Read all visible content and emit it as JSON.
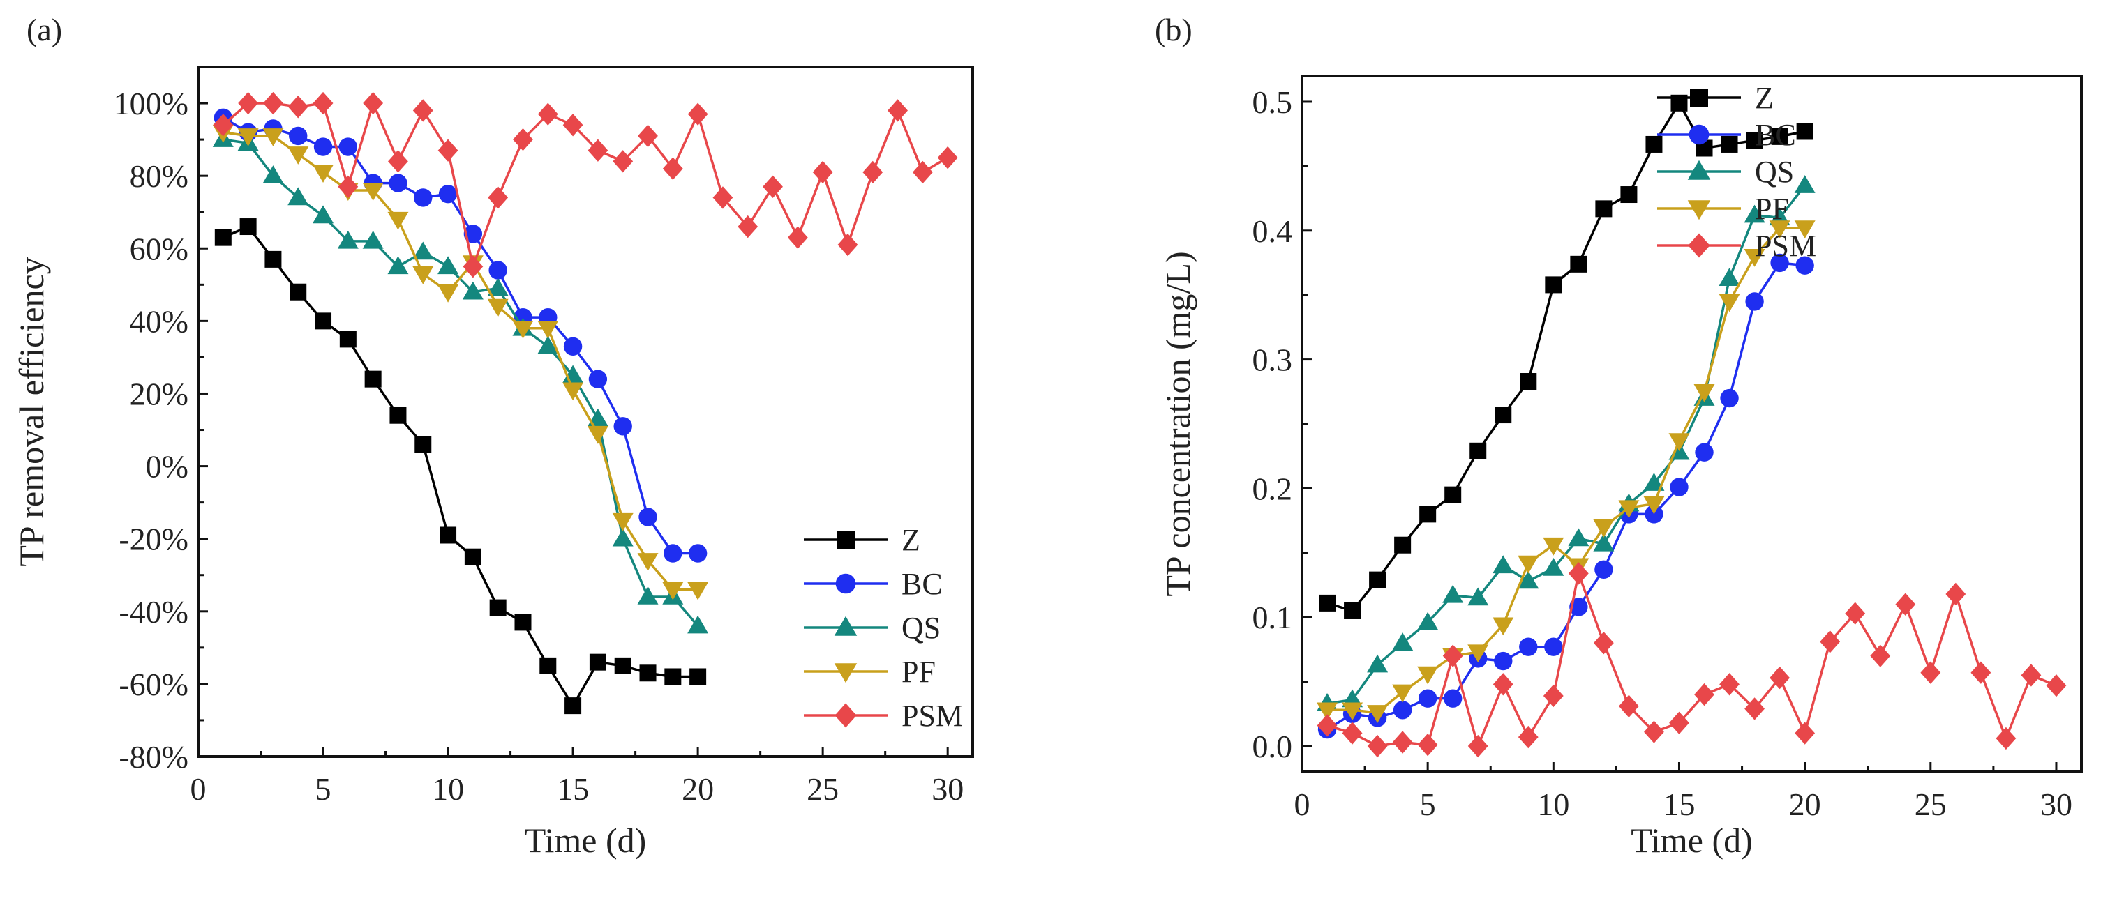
{
  "chart_data": [
    {
      "type": "line",
      "panel_label": "(a)",
      "xlabel": "Time (d)",
      "ylabel": "TP removal efficiency",
      "xlim": [
        0,
        31
      ],
      "ylim": [
        -80,
        110
      ],
      "xticks": [
        0,
        5,
        10,
        15,
        20,
        25,
        30
      ],
      "yticks": [
        -80,
        -60,
        -40,
        -20,
        0,
        20,
        40,
        60,
        80,
        100
      ],
      "ytick_suffix": "%",
      "legend_position": "bottom-right",
      "series": [
        {
          "name": "Z",
          "color": "#000000",
          "marker": "square",
          "x": [
            1,
            2,
            3,
            4,
            5,
            6,
            7,
            8,
            9,
            10,
            11,
            12,
            13,
            14,
            15,
            16,
            17,
            18,
            19,
            20
          ],
          "y": [
            63,
            66,
            57,
            48,
            40,
            35,
            24,
            14,
            6,
            -19,
            -25,
            -39,
            -43,
            -55,
            -66,
            -54,
            -55,
            -57,
            -58,
            -58
          ]
        },
        {
          "name": "BC",
          "color": "#1f2ef0",
          "marker": "circle",
          "x": [
            1,
            2,
            3,
            4,
            5,
            6,
            7,
            8,
            9,
            10,
            11,
            12,
            13,
            14,
            15,
            16,
            17,
            18,
            19,
            20
          ],
          "y": [
            96,
            92,
            93,
            91,
            88,
            88,
            78,
            78,
            74,
            75,
            64,
            54,
            41,
            41,
            33,
            24,
            11,
            -14,
            -24,
            -24
          ]
        },
        {
          "name": "QS",
          "color": "#14877e",
          "marker": "triangle-up",
          "x": [
            1,
            2,
            3,
            4,
            5,
            6,
            7,
            8,
            9,
            10,
            11,
            12,
            13,
            14,
            15,
            16,
            17,
            18,
            19,
            20
          ],
          "y": [
            90,
            89,
            80,
            74,
            69,
            62,
            62,
            55,
            59,
            55,
            48,
            49,
            38,
            33,
            25,
            13,
            -20,
            -36,
            -36,
            -44
          ]
        },
        {
          "name": "PF",
          "color": "#c9a01c",
          "marker": "triangle-down",
          "x": [
            1,
            2,
            3,
            4,
            5,
            6,
            7,
            8,
            9,
            10,
            11,
            12,
            13,
            14,
            15,
            16,
            17,
            18,
            19,
            20
          ],
          "y": [
            92,
            91,
            91,
            86,
            81,
            76,
            76,
            68,
            53,
            48,
            56,
            44,
            38,
            38,
            21,
            9,
            -15,
            -26,
            -34,
            -34
          ]
        },
        {
          "name": "PSM",
          "color": "#e8474a",
          "marker": "diamond",
          "x": [
            1,
            2,
            3,
            4,
            5,
            6,
            7,
            8,
            9,
            10,
            11,
            12,
            13,
            14,
            15,
            16,
            17,
            18,
            19,
            20,
            21,
            22,
            23,
            24,
            25,
            26,
            27,
            28,
            29,
            30
          ],
          "y": [
            94,
            100,
            100,
            99,
            100,
            77,
            100,
            84,
            98,
            87,
            55,
            74,
            90,
            97,
            94,
            87,
            84,
            91,
            82,
            97,
            74,
            66,
            77,
            63,
            81,
            61,
            81,
            98,
            81,
            85
          ]
        }
      ]
    },
    {
      "type": "line",
      "panel_label": "(b)",
      "xlabel": "Time (d)",
      "ylabel": "TP concentration (mg/L)",
      "xlim": [
        0,
        31
      ],
      "ylim": [
        -0.02,
        0.52
      ],
      "xticks": [
        0,
        5,
        10,
        15,
        20,
        25,
        30
      ],
      "yticks": [
        0.0,
        0.1,
        0.2,
        0.3,
        0.4,
        0.5
      ],
      "ytick_suffix": "",
      "legend_position": "top-right",
      "series": [
        {
          "name": "Z",
          "color": "#000000",
          "marker": "square",
          "x": [
            1,
            2,
            3,
            4,
            5,
            6,
            7,
            8,
            9,
            10,
            11,
            12,
            13,
            14,
            15,
            16,
            17,
            18,
            19,
            20
          ],
          "y": [
            0.111,
            0.105,
            0.129,
            0.156,
            0.18,
            0.195,
            0.229,
            0.257,
            0.283,
            0.358,
            0.374,
            0.417,
            0.428,
            0.467,
            0.499,
            0.464,
            0.467,
            0.47,
            0.473,
            0.477
          ]
        },
        {
          "name": "BC",
          "color": "#1f2ef0",
          "marker": "circle",
          "x": [
            1,
            2,
            3,
            4,
            5,
            6,
            7,
            8,
            9,
            10,
            11,
            12,
            13,
            14,
            15,
            16,
            17,
            18,
            19,
            20
          ],
          "y": [
            0.013,
            0.025,
            0.022,
            0.028,
            0.037,
            0.037,
            0.068,
            0.066,
            0.077,
            0.077,
            0.108,
            0.137,
            0.18,
            0.18,
            0.201,
            0.228,
            0.27,
            0.345,
            0.375,
            0.373
          ]
        },
        {
          "name": "QS",
          "color": "#14877e",
          "marker": "triangle-up",
          "x": [
            1,
            2,
            3,
            4,
            5,
            6,
            7,
            8,
            9,
            10,
            11,
            12,
            13,
            14,
            15,
            16,
            17,
            18,
            19,
            20
          ],
          "y": [
            0.033,
            0.036,
            0.063,
            0.08,
            0.096,
            0.117,
            0.115,
            0.14,
            0.128,
            0.138,
            0.161,
            0.157,
            0.188,
            0.204,
            0.228,
            0.27,
            0.363,
            0.412,
            0.41,
            0.435
          ]
        },
        {
          "name": "PF",
          "color": "#c9a01c",
          "marker": "triangle-down",
          "x": [
            1,
            2,
            3,
            4,
            5,
            6,
            7,
            8,
            9,
            10,
            11,
            12,
            13,
            14,
            15,
            16,
            17,
            18,
            19,
            20
          ],
          "y": [
            0.028,
            0.028,
            0.026,
            0.042,
            0.056,
            0.07,
            0.073,
            0.094,
            0.142,
            0.156,
            0.14,
            0.17,
            0.185,
            0.188,
            0.237,
            0.275,
            0.345,
            0.38,
            0.402,
            0.402
          ]
        },
        {
          "name": "PSM",
          "color": "#e8474a",
          "marker": "diamond",
          "x": [
            1,
            2,
            3,
            4,
            5,
            6,
            7,
            8,
            9,
            10,
            11,
            12,
            13,
            14,
            15,
            16,
            17,
            18,
            19,
            20,
            21,
            22,
            23,
            24,
            25,
            26,
            27,
            28,
            29,
            30
          ],
          "y": [
            0.016,
            0.01,
            0.0,
            0.003,
            0.001,
            0.07,
            0.0,
            0.048,
            0.007,
            0.039,
            0.134,
            0.08,
            0.031,
            0.011,
            0.018,
            0.04,
            0.048,
            0.029,
            0.053,
            0.01,
            0.081,
            0.103,
            0.07,
            0.11,
            0.057,
            0.118,
            0.057,
            0.006,
            0.055,
            0.047
          ]
        }
      ]
    }
  ]
}
